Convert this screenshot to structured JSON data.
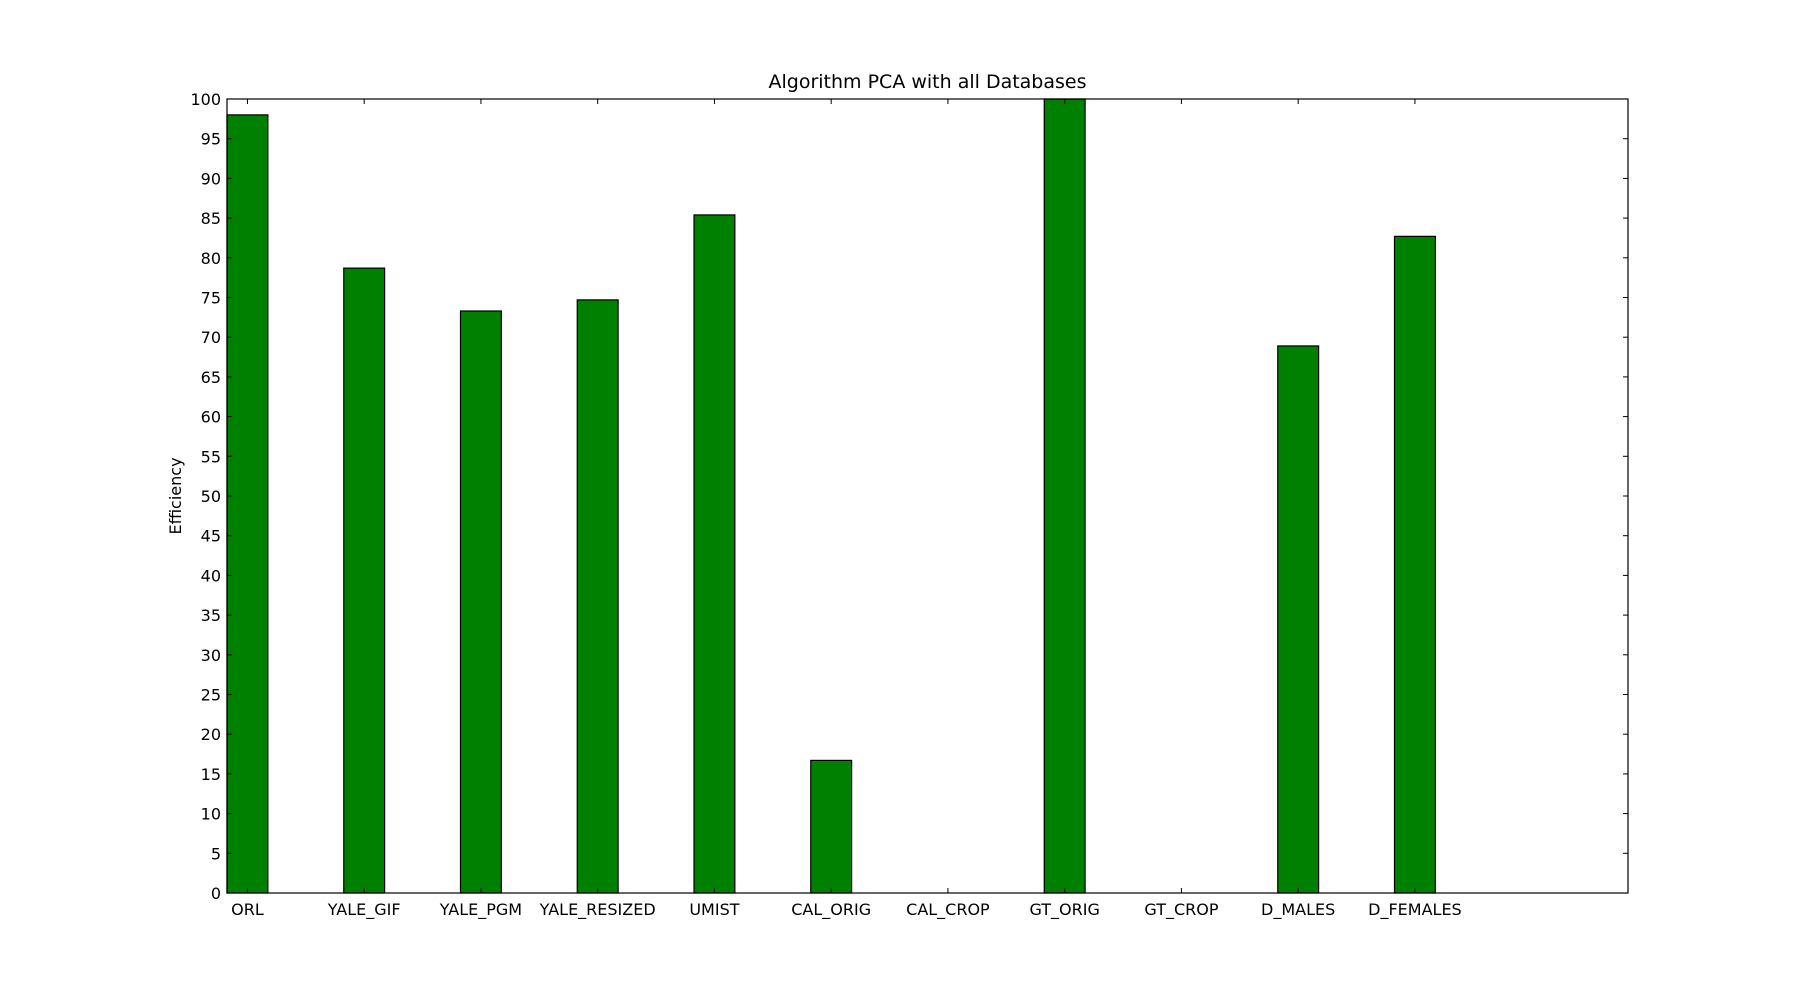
{
  "chart_data": {
    "type": "bar",
    "title": "Algorithm PCA with all Databases",
    "xlabel": "",
    "ylabel": "Efficiency",
    "categories": [
      "ORL",
      "YALE_GIF",
      "YALE_PGM",
      "YALE_RESIZED",
      "UMIST",
      "CAL_ORIG",
      "CAL_CROP",
      "GT_ORIG",
      "GT_CROP",
      "D_MALES",
      "D_FEMALES"
    ],
    "values": [
      98.0,
      78.7,
      73.3,
      74.7,
      85.4,
      16.7,
      0,
      100.0,
      0,
      68.9,
      82.7
    ],
    "ylim": [
      0,
      100
    ],
    "xlim": [
      0,
      12
    ],
    "yticks": [
      0,
      5,
      10,
      15,
      20,
      25,
      30,
      35,
      40,
      45,
      50,
      55,
      60,
      65,
      70,
      75,
      80,
      85,
      90,
      95,
      100
    ],
    "bar_color": "#008000",
    "edge_color": "#000000",
    "grid": false
  }
}
